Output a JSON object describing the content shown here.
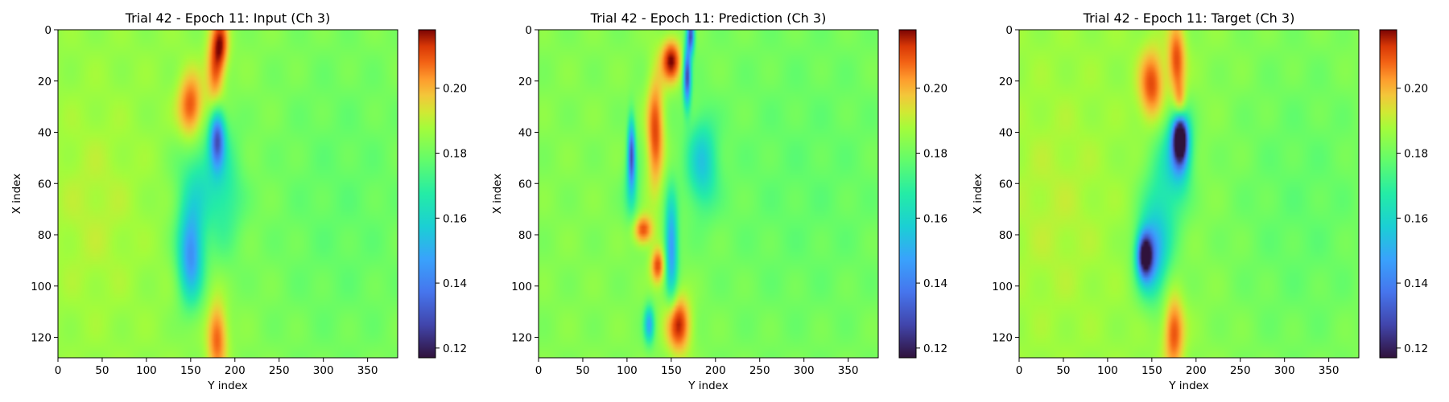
{
  "chart_data": [
    {
      "type": "heatmap",
      "title": "Trial 42 - Epoch 11: Input (Ch 3)",
      "xlabel": "Y index",
      "ylabel": "X index",
      "xticks": [
        0,
        50,
        100,
        150,
        200,
        250,
        300,
        350
      ],
      "yticks": [
        0,
        20,
        40,
        60,
        80,
        100,
        120
      ],
      "xlim": [
        0,
        384
      ],
      "ylim": [
        128,
        0
      ],
      "colorbar": {
        "ticks": [
          0.12,
          0.14,
          0.16,
          0.18,
          0.2
        ],
        "tick_labels": [
          "0.12",
          "0.14",
          "0.16",
          "0.18",
          "0.20"
        ],
        "range": [
          0.117,
          0.218
        ],
        "colormap": "turbo"
      },
      "background_value": 0.185,
      "features": [
        {
          "cx": 150,
          "cy": 30,
          "sx": 10,
          "sy": 9,
          "v": 0.212
        },
        {
          "cx": 178,
          "cy": 15,
          "sx": 7,
          "sy": 12,
          "v": 0.21
        },
        {
          "cx": 185,
          "cy": 5,
          "sx": 6,
          "sy": 7,
          "v": 0.206
        },
        {
          "cx": 180,
          "cy": 42,
          "sx": 6,
          "sy": 8,
          "v": 0.138
        },
        {
          "cx": 150,
          "cy": 88,
          "sx": 10,
          "sy": 13,
          "v": 0.145
        },
        {
          "cx": 190,
          "cy": 63,
          "sx": 14,
          "sy": 18,
          "v": 0.172
        },
        {
          "cx": 160,
          "cy": 60,
          "sx": 18,
          "sy": 14,
          "v": 0.168
        },
        {
          "cx": 180,
          "cy": 120,
          "sx": 8,
          "sy": 10,
          "v": 0.21
        },
        {
          "cx": 320,
          "cy": 70,
          "sx": 80,
          "sy": 60,
          "v": 0.178
        },
        {
          "cx": 40,
          "cy": 70,
          "sx": 40,
          "sy": 30,
          "v": 0.19
        }
      ]
    },
    {
      "type": "heatmap",
      "title": "Trial 42 - Epoch 11: Prediction (Ch 3)",
      "xlabel": "Y index",
      "ylabel": "X index",
      "xticks": [
        0,
        50,
        100,
        150,
        200,
        250,
        300,
        350
      ],
      "yticks": [
        0,
        20,
        40,
        60,
        80,
        100,
        120
      ],
      "xlim": [
        0,
        384
      ],
      "ylim": [
        128,
        0
      ],
      "colorbar": {
        "ticks": [
          0.12,
          0.14,
          0.16,
          0.18,
          0.2
        ],
        "tick_labels": [
          "0.12",
          "0.14",
          "0.16",
          "0.18",
          "0.20"
        ],
        "range": [
          0.117,
          0.218
        ],
        "colormap": "turbo"
      },
      "background_value": 0.183,
      "features": [
        {
          "cx": 150,
          "cy": 12,
          "sx": 8,
          "sy": 6,
          "v": 0.218
        },
        {
          "cx": 132,
          "cy": 40,
          "sx": 7,
          "sy": 16,
          "v": 0.212
        },
        {
          "cx": 168,
          "cy": 18,
          "sx": 3,
          "sy": 8,
          "v": 0.128
        },
        {
          "cx": 172,
          "cy": 2,
          "sx": 3,
          "sy": 5,
          "v": 0.13
        },
        {
          "cx": 105,
          "cy": 48,
          "sx": 3,
          "sy": 9,
          "v": 0.135
        },
        {
          "cx": 185,
          "cy": 52,
          "sx": 12,
          "sy": 12,
          "v": 0.158
        },
        {
          "cx": 150,
          "cy": 85,
          "sx": 5,
          "sy": 14,
          "v": 0.145
        },
        {
          "cx": 118,
          "cy": 78,
          "sx": 8,
          "sy": 4,
          "v": 0.212
        },
        {
          "cx": 135,
          "cy": 92,
          "sx": 6,
          "sy": 5,
          "v": 0.212
        },
        {
          "cx": 158,
          "cy": 115,
          "sx": 10,
          "sy": 8,
          "v": 0.216
        },
        {
          "cx": 125,
          "cy": 115,
          "sx": 4,
          "sy": 5,
          "v": 0.15
        },
        {
          "cx": 105,
          "cy": 62,
          "sx": 6,
          "sy": 10,
          "v": 0.168
        },
        {
          "cx": 300,
          "cy": 60,
          "sx": 90,
          "sy": 50,
          "v": 0.178
        }
      ]
    },
    {
      "type": "heatmap",
      "title": "Trial 42 - Epoch 11: Target (Ch 3)",
      "xlabel": "Y index",
      "ylabel": "X index",
      "xticks": [
        0,
        50,
        100,
        150,
        200,
        250,
        300,
        350
      ],
      "yticks": [
        0,
        20,
        40,
        60,
        80,
        100,
        120
      ],
      "xlim": [
        0,
        384
      ],
      "ylim": [
        128,
        0
      ],
      "colorbar": {
        "ticks": [
          0.12,
          0.14,
          0.16,
          0.18,
          0.2
        ],
        "tick_labels": [
          "0.12",
          "0.14",
          "0.16",
          "0.18",
          "0.20"
        ],
        "range": [
          0.117,
          0.218
        ],
        "colormap": "turbo"
      },
      "background_value": 0.186,
      "features": [
        {
          "cx": 150,
          "cy": 22,
          "sx": 10,
          "sy": 10,
          "v": 0.212
        },
        {
          "cx": 178,
          "cy": 12,
          "sx": 7,
          "sy": 10,
          "v": 0.212
        },
        {
          "cx": 182,
          "cy": 30,
          "sx": 5,
          "sy": 6,
          "v": 0.21
        },
        {
          "cx": 182,
          "cy": 42,
          "sx": 5,
          "sy": 6,
          "v": 0.124
        },
        {
          "cx": 182,
          "cy": 45,
          "sx": 9,
          "sy": 10,
          "v": 0.145
        },
        {
          "cx": 142,
          "cy": 88,
          "sx": 6,
          "sy": 6,
          "v": 0.128
        },
        {
          "cx": 150,
          "cy": 88,
          "sx": 12,
          "sy": 12,
          "v": 0.152
        },
        {
          "cx": 165,
          "cy": 62,
          "sx": 16,
          "sy": 18,
          "v": 0.168
        },
        {
          "cx": 175,
          "cy": 118,
          "sx": 8,
          "sy": 10,
          "v": 0.212
        },
        {
          "cx": 320,
          "cy": 70,
          "sx": 80,
          "sy": 60,
          "v": 0.178
        },
        {
          "cx": 40,
          "cy": 70,
          "sx": 40,
          "sy": 30,
          "v": 0.19
        }
      ]
    }
  ]
}
